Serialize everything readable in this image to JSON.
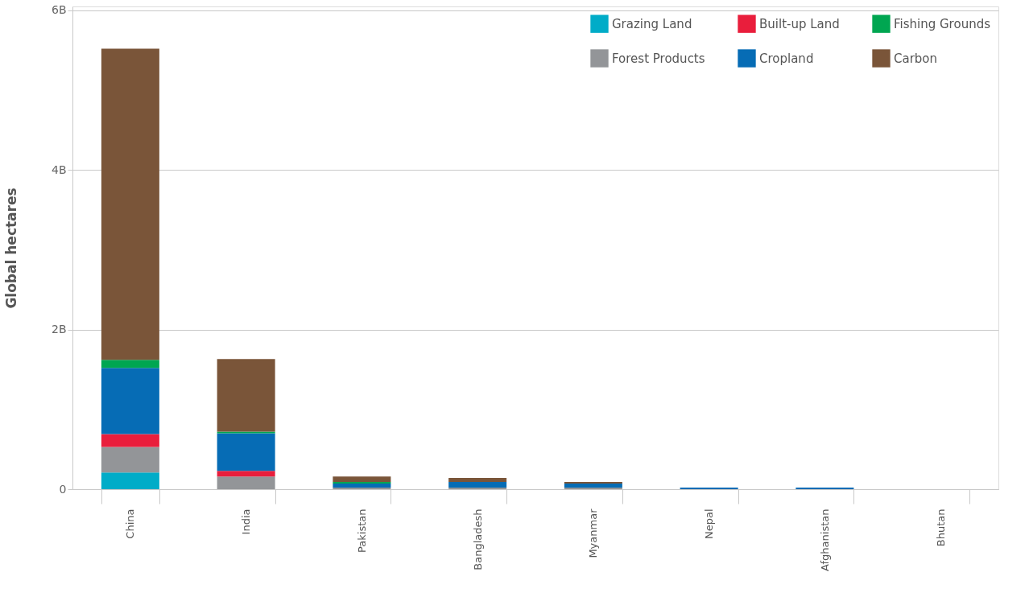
{
  "chart_data": {
    "type": "bar",
    "stacked": true,
    "ylabel": "Global hectares",
    "categories": [
      "China",
      "India",
      "Pakistan",
      "Bangladesh",
      "Myanmar",
      "Nepal",
      "Afghanistan",
      "Bhutan"
    ],
    "series": [
      {
        "name": "Grazing Land",
        "color": "#00acc8",
        "values": [
          0.21,
          0,
          0,
          0,
          0,
          0,
          0,
          0
        ]
      },
      {
        "name": "Forest Products",
        "color": "#939598",
        "values": [
          0.32,
          0.16,
          0.02,
          0.02,
          0.02,
          0,
          0,
          0
        ]
      },
      {
        "name": "Built-up Land",
        "color": "#e91e3c",
        "values": [
          0.16,
          0.07,
          0,
          0,
          0,
          0,
          0,
          0
        ]
      },
      {
        "name": "Cropland",
        "color": "#066cb5",
        "values": [
          0.83,
          0.47,
          0.05,
          0.07,
          0.05,
          0.02,
          0.02,
          0
        ]
      },
      {
        "name": "Fishing Grounds",
        "color": "#00a651",
        "values": [
          0.1,
          0.02,
          0.02,
          0,
          0,
          0,
          0,
          0
        ]
      },
      {
        "name": "Carbon",
        "color": "#7a5539",
        "values": [
          3.9,
          0.91,
          0.07,
          0.05,
          0.02,
          0,
          0,
          0
        ]
      }
    ],
    "ylim": [
      0,
      6.05
    ],
    "yticks": [
      {
        "value": 0,
        "label": "0"
      },
      {
        "value": 2,
        "label": "2B"
      },
      {
        "value": 4,
        "label": "4B"
      },
      {
        "value": 6,
        "label": "6B"
      }
    ],
    "grid": "y",
    "legend": "top right"
  }
}
